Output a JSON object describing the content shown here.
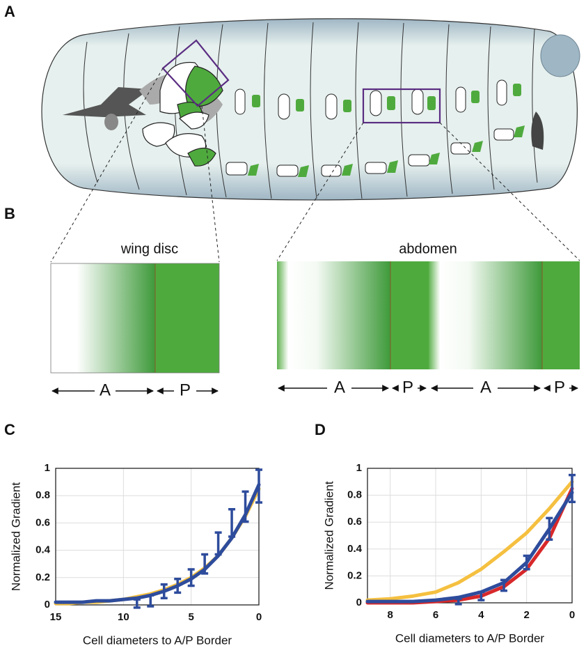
{
  "panel_labels": [
    "A",
    "B",
    "C",
    "D"
  ],
  "diagram": {
    "wing_disc": {
      "title": "wing disc",
      "arrows": [
        "A",
        "P"
      ]
    },
    "abdomen": {
      "title": "abdomen",
      "arrows": [
        "A",
        "P",
        "A",
        "P"
      ]
    }
  },
  "chart_data": [
    {
      "type": "line",
      "xlabel": "Cell diameters to A/P Border",
      "ylabel": "Normalized Gradient",
      "x": [
        15,
        14,
        13,
        12,
        11,
        10,
        9,
        8,
        7,
        6,
        5,
        4,
        3,
        2,
        1,
        0
      ],
      "xlim": [
        15,
        0
      ],
      "ylim": [
        0,
        1
      ],
      "xticks": [
        15,
        10,
        5,
        0
      ],
      "yticks": [
        0,
        0.2,
        0.4,
        0.6,
        0.8,
        1
      ],
      "grid": true,
      "series": [
        {
          "color": "#2e4c9c",
          "values": [
            null,
            null,
            null,
            null,
            null,
            null,
            0.01,
            0.03,
            0.1,
            0.14,
            0.2,
            0.3,
            0.45,
            0.6,
            0.72,
            0.87
          ],
          "errors": [
            null,
            null,
            null,
            null,
            null,
            null,
            0.03,
            0.04,
            0.05,
            0.05,
            0.06,
            0.07,
            0.08,
            0.1,
            0.11,
            0.12
          ]
        },
        {
          "color": "#f5c040",
          "values": [
            0.01,
            0.01,
            0.02,
            0.02,
            0.03,
            0.04,
            0.06,
            0.08,
            0.11,
            0.15,
            0.2,
            0.27,
            0.36,
            0.49,
            0.65,
            0.85
          ]
        },
        {
          "color": "#2e4c9c",
          "values": [
            0.02,
            0.02,
            0.02,
            0.03,
            0.03,
            0.04,
            0.05,
            0.07,
            0.1,
            0.14,
            0.19,
            0.26,
            0.36,
            0.49,
            0.66,
            0.88
          ]
        }
      ]
    },
    {
      "type": "line",
      "xlabel": "Cell diameters to A/P Border",
      "ylabel": "Normalized Gradient",
      "x": [
        9,
        8,
        7,
        6,
        5,
        4,
        3,
        2,
        1,
        0
      ],
      "xlim": [
        9,
        0
      ],
      "ylim": [
        0,
        1
      ],
      "xticks": [
        8,
        6,
        4,
        2,
        0
      ],
      "yticks": [
        0,
        0.2,
        0.4,
        0.6,
        0.8,
        1
      ],
      "grid": true,
      "series": [
        {
          "color": "#2e4c9c",
          "values": [
            null,
            null,
            null,
            null,
            0.01,
            0.05,
            0.13,
            0.3,
            0.55,
            0.85
          ],
          "errors": [
            null,
            null,
            null,
            null,
            0.02,
            0.03,
            0.04,
            0.05,
            0.08,
            0.1
          ]
        },
        {
          "color": "#f5c040",
          "values": [
            0.02,
            0.03,
            0.05,
            0.08,
            0.15,
            0.25,
            0.38,
            0.52,
            0.7,
            0.9
          ]
        },
        {
          "color": "#d8282a",
          "values": [
            0,
            0,
            0,
            0.01,
            0.02,
            0.05,
            0.12,
            0.25,
            0.48,
            0.85
          ]
        },
        {
          "color": "#2e4c9c",
          "values": [
            0.01,
            0.01,
            0.01,
            0.02,
            0.04,
            0.08,
            0.15,
            0.3,
            0.55,
            0.82
          ]
        }
      ]
    }
  ]
}
